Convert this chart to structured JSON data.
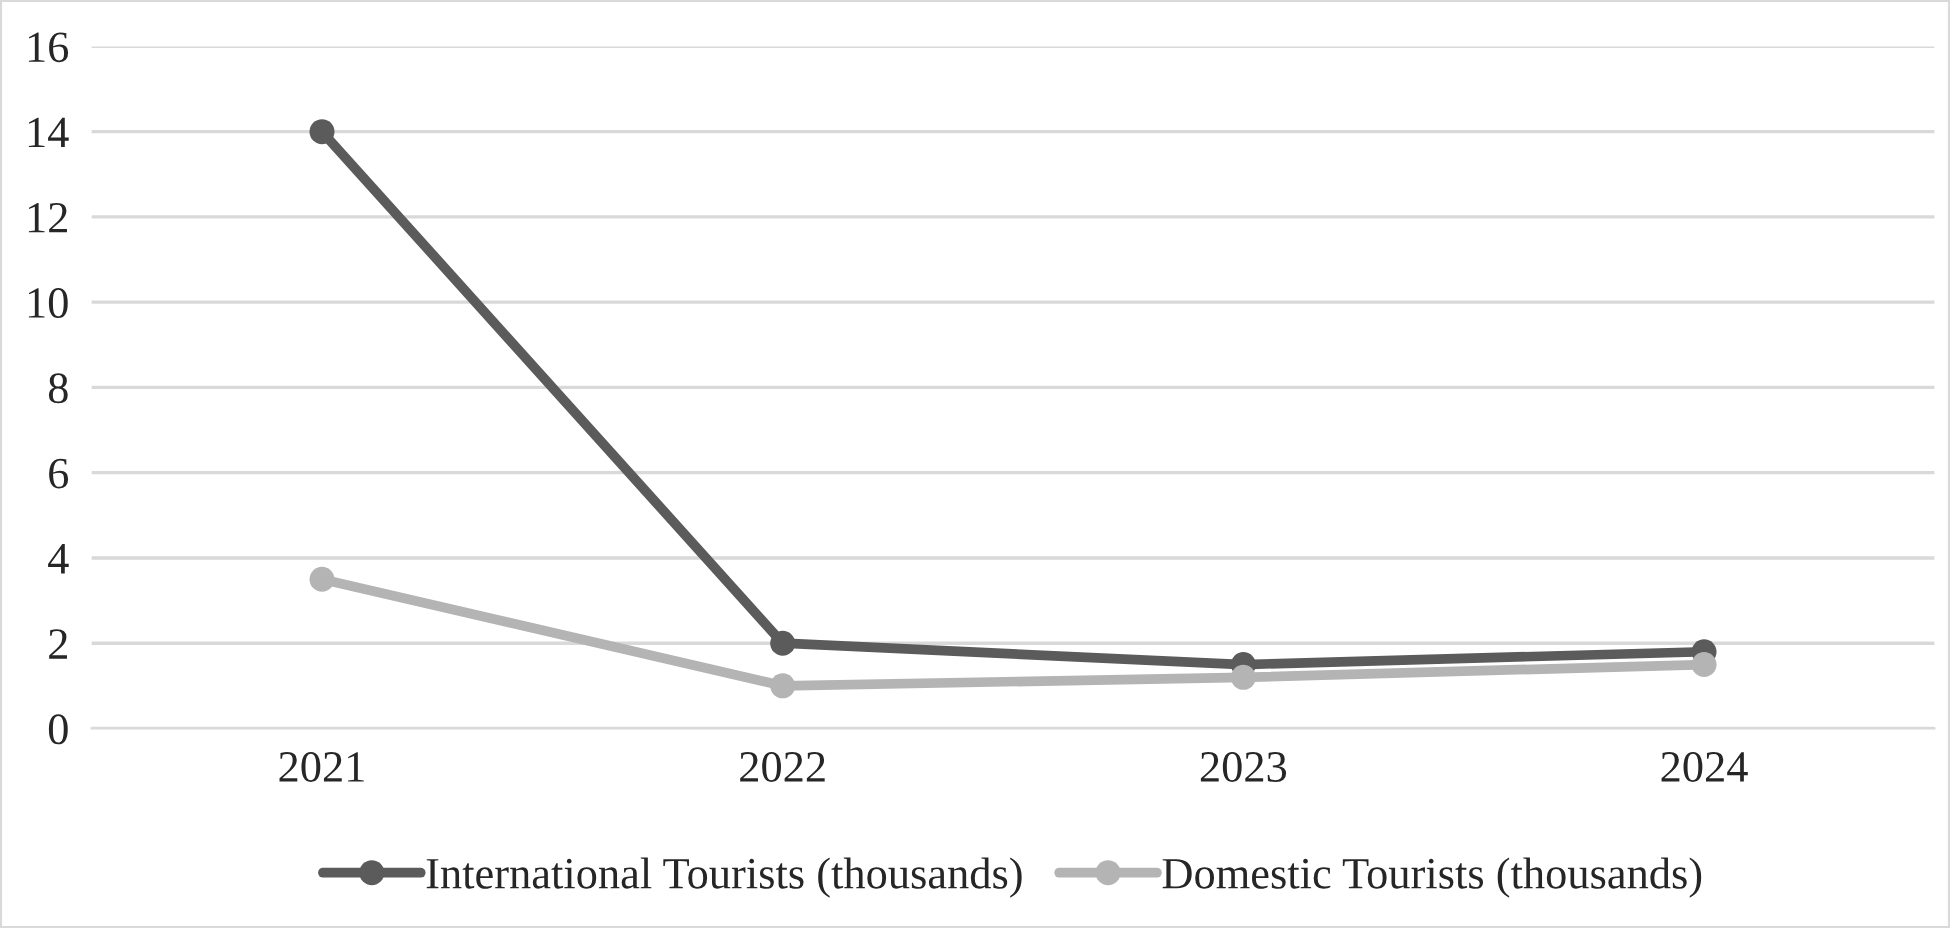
{
  "chart_data": {
    "type": "line",
    "categories": [
      "2021",
      "2022",
      "2023",
      "2024"
    ],
    "series": [
      {
        "name": "International Tourists (thousands)",
        "color": "#5b5b5b",
        "values": [
          14,
          2,
          1.5,
          1.8
        ]
      },
      {
        "name": "Domestic Tourists (thousands)",
        "color": "#b4b4b4",
        "values": [
          3.5,
          1.0,
          1.2,
          1.5
        ]
      }
    ],
    "ylim": [
      0,
      16
    ],
    "yticks": [
      0,
      2,
      4,
      6,
      8,
      10,
      12,
      14,
      16
    ],
    "grid": "y",
    "legend": "bottom",
    "marker": "circle",
    "line_style": "solid"
  }
}
